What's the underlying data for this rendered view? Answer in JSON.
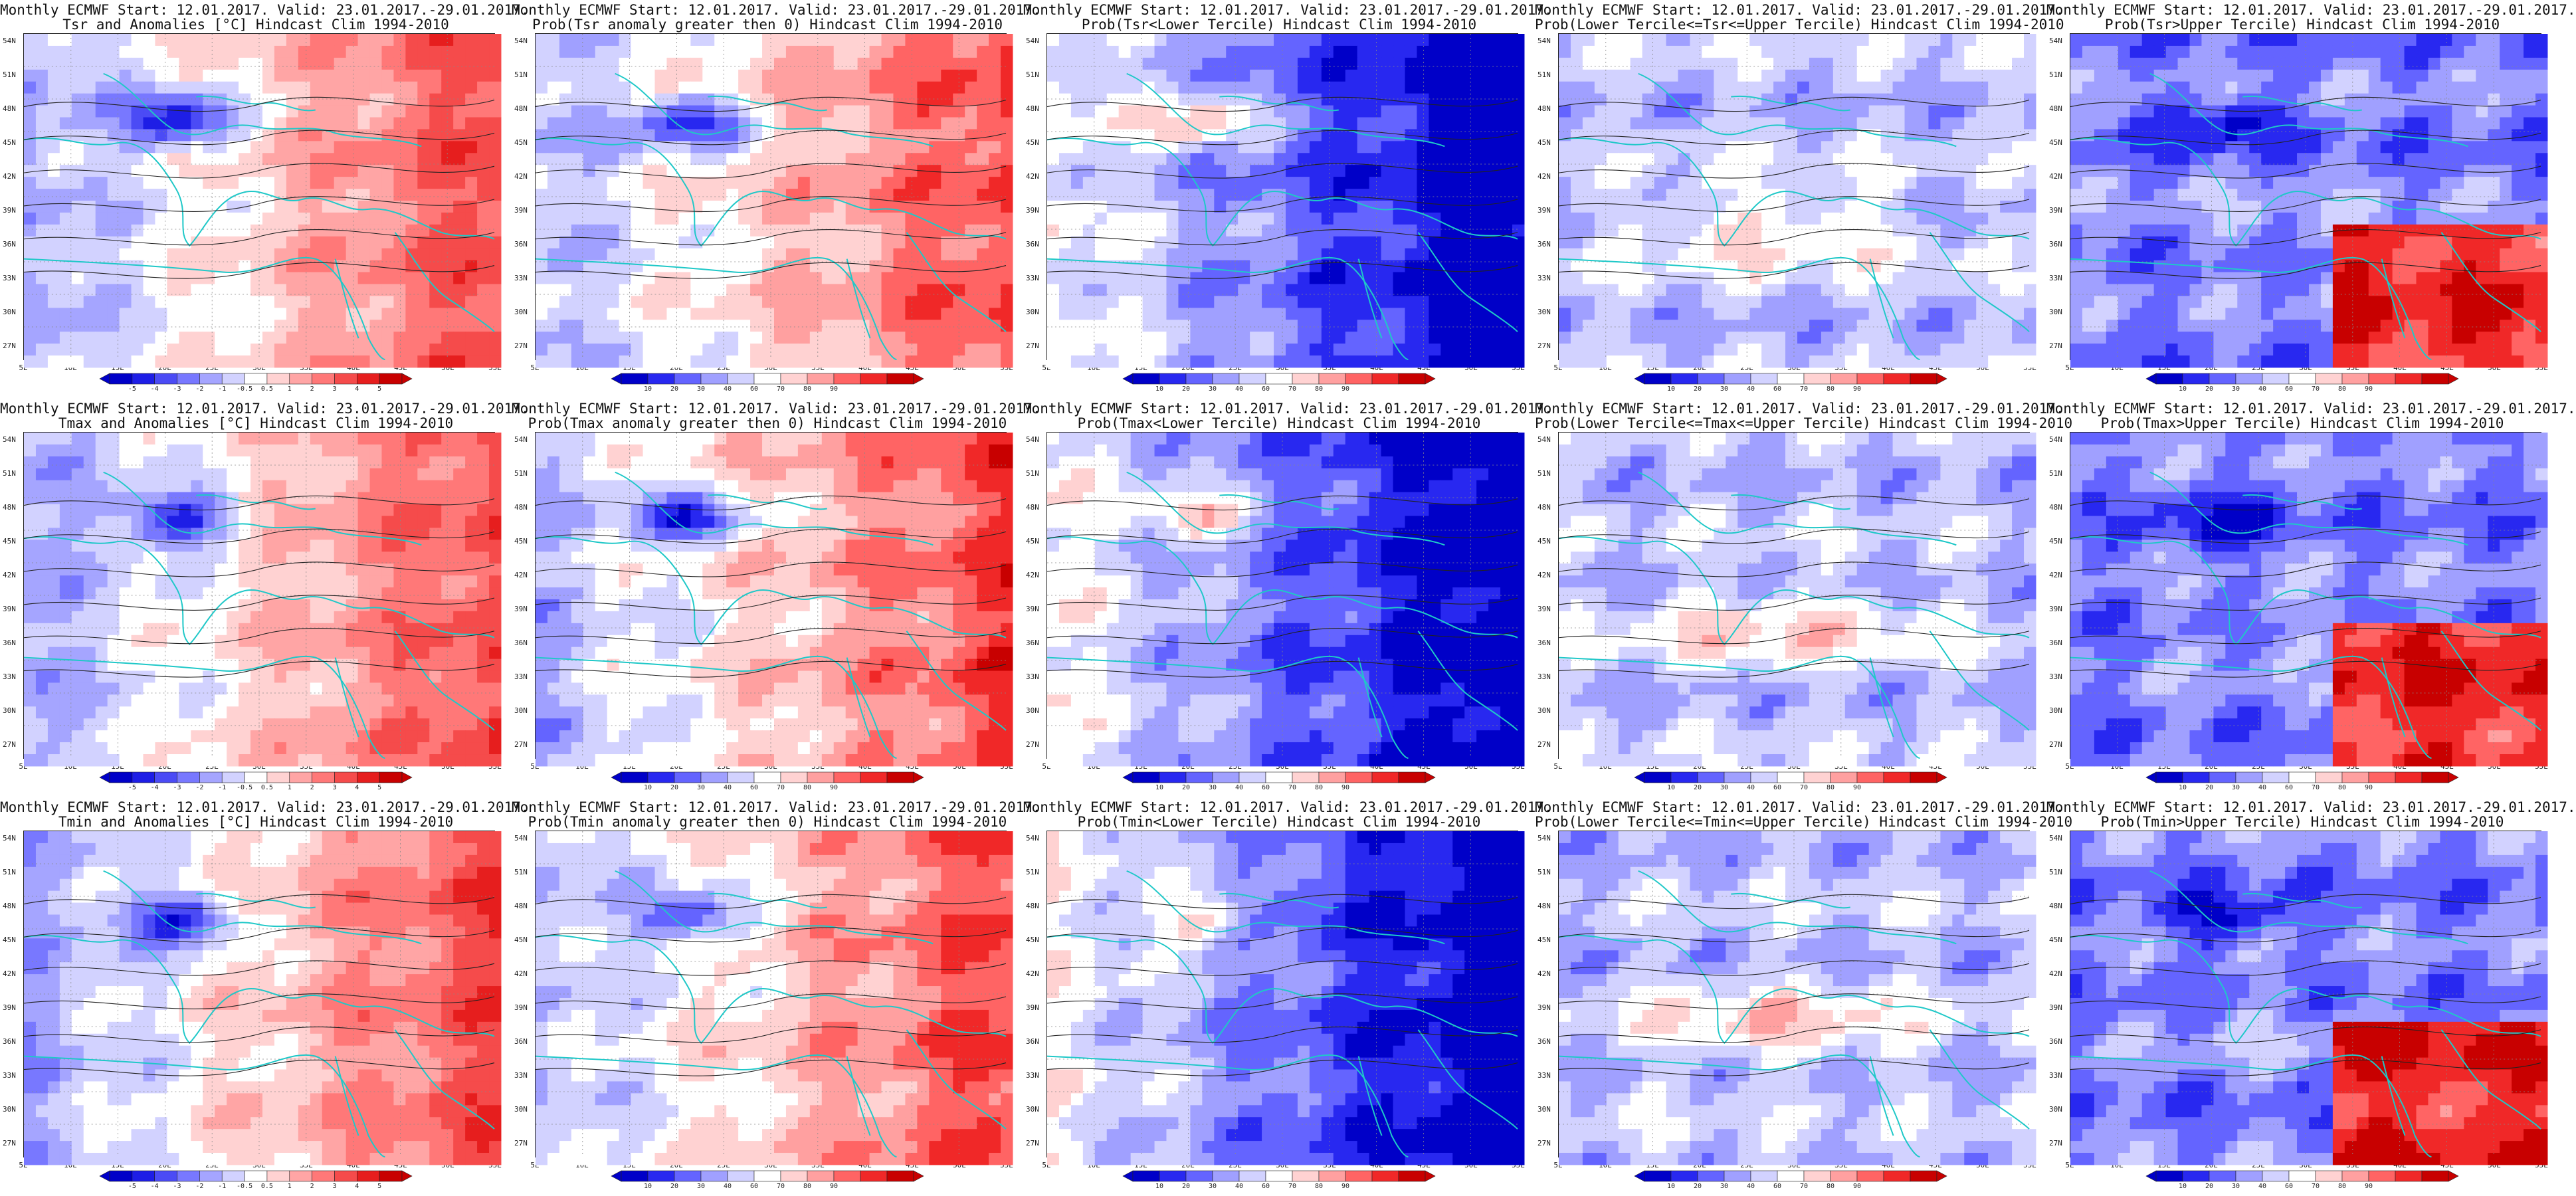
{
  "lat_labels": [
    "54N",
    "51N",
    "48N",
    "45N",
    "42N",
    "39N",
    "36N",
    "33N",
    "30N",
    "27N"
  ],
  "lon_labels": [
    "5E",
    "10E",
    "15E",
    "20E",
    "25E",
    "30E",
    "35E",
    "40E",
    "45E",
    "50E",
    "55E"
  ],
  "colorbars": {
    "anomaly": {
      "ticks": [
        "-5",
        "-4",
        "-3",
        "-2",
        "-1",
        "-0.5",
        "0.5",
        "1",
        "2",
        "3",
        "4",
        "5"
      ],
      "colors": [
        "#0000c8",
        "#1e1ee6",
        "#4b4bf5",
        "#7878ff",
        "#a5a5ff",
        "#d2d2ff",
        "#ffffff",
        "#ffd2d2",
        "#ffa5a5",
        "#ff7878",
        "#f54b4b",
        "#e61e1e",
        "#c80000"
      ]
    },
    "probability": {
      "ticks": [
        "10",
        "20",
        "30",
        "40",
        "60",
        "70",
        "80",
        "90"
      ],
      "colors": [
        "#0000c8",
        "#2828f0",
        "#6464ff",
        "#a0a0ff",
        "#d2d2ff",
        "#ffffff",
        "#ffd2d2",
        "#ffa0a0",
        "#ff6464",
        "#f02828",
        "#c80000"
      ]
    }
  },
  "panels": [
    {
      "title1": "Monthly ECMWF Start: 12.01.2017. Valid: 23.01.2017.-29.01.2017.",
      "title2": "Tsr and Anomalies [°C] Hindcast Clim 1994-2010",
      "scheme": "anom",
      "colorbar": "anomaly"
    },
    {
      "title1": "Monthly ECMWF Start: 12.01.2017. Valid: 23.01.2017.-29.01.2017.",
      "title2": "Prob(Tsr anomaly greater then 0) Hindcast Clim 1994-2010",
      "scheme": "gt0",
      "colorbar": "probability"
    },
    {
      "title1": "Monthly ECMWF Start: 12.01.2017. Valid: 23.01.2017.-29.01.2017.",
      "title2": "Prob(Tsr<Lower Tercile) Hindcast Clim 1994-2010",
      "scheme": "lower",
      "colorbar": "probability"
    },
    {
      "title1": "Monthly ECMWF Start: 12.01.2017. Valid: 23.01.2017.-29.01.2017.",
      "title2": "Prob(Lower Tercile<=Tsr<=Upper Tercile) Hindcast Clim 1994-2010",
      "scheme": "middle",
      "colorbar": "probability"
    },
    {
      "title1": "Monthly ECMWF Start: 12.01.2017. Valid: 23.01.2017.-29.01.2017.",
      "title2": "Prob(Tsr>Upper Tercile) Hindcast Clim 1994-2010",
      "scheme": "upper",
      "colorbar": "probability"
    },
    {
      "title1": "Monthly ECMWF Start: 12.01.2017. Valid: 23.01.2017.-29.01.2017.",
      "title2": "Tmax and Anomalies [°C] Hindcast Clim 1994-2010",
      "scheme": "anom",
      "colorbar": "anomaly"
    },
    {
      "title1": "Monthly ECMWF Start: 12.01.2017. Valid: 23.01.2017.-29.01.2017.",
      "title2": "Prob(Tmax anomaly greater then 0) Hindcast Clim 1994-2010",
      "scheme": "gt0",
      "colorbar": "probability"
    },
    {
      "title1": "Monthly ECMWF Start: 12.01.2017. Valid: 23.01.2017.-29.01.2017.",
      "title2": "Prob(Tmax<Lower Tercile) Hindcast Clim 1994-2010",
      "scheme": "lower",
      "colorbar": "probability"
    },
    {
      "title1": "Monthly ECMWF Start: 12.01.2017. Valid: 23.01.2017.-29.01.2017.",
      "title2": "Prob(Lower Tercile<=Tmax<=Upper Tercile) Hindcast Clim 1994-2010",
      "scheme": "middle",
      "colorbar": "probability"
    },
    {
      "title1": "Monthly ECMWF Start: 12.01.2017. Valid: 23.01.2017.-29.01.2017.",
      "title2": "Prob(Tmax>Upper Tercile) Hindcast Clim 1994-2010",
      "scheme": "upper",
      "colorbar": "probability"
    },
    {
      "title1": "Monthly ECMWF Start: 12.01.2017. Valid: 23.01.2017.-29.01.2017.",
      "title2": "Tmin and Anomalies [°C] Hindcast Clim 1994-2010",
      "scheme": "anom",
      "colorbar": "anomaly"
    },
    {
      "title1": "Monthly ECMWF Start: 12.01.2017. Valid: 23.01.2017.-29.01.2017.",
      "title2": "Prob(Tmin anomaly greater then 0) Hindcast Clim 1994-2010",
      "scheme": "gt0",
      "colorbar": "probability"
    },
    {
      "title1": "Monthly ECMWF Start: 12.01.2017. Valid: 23.01.2017.-29.01.2017.",
      "title2": "Prob(Tmin<Lower Tercile) Hindcast Clim 1994-2010",
      "scheme": "lower",
      "colorbar": "probability"
    },
    {
      "title1": "Monthly ECMWF Start: 12.01.2017. Valid: 23.01.2017.-29.01.2017.",
      "title2": "Prob(Lower Tercile<=Tmin<=Upper Tercile) Hindcast Clim 1994-2010",
      "scheme": "middle",
      "colorbar": "probability"
    },
    {
      "title1": "Monthly ECMWF Start: 12.01.2017. Valid: 23.01.2017.-29.01.2017.",
      "title2": "Prob(Tmin>Upper Tercile) Hindcast Clim 1994-2010",
      "scheme": "upper",
      "colorbar": "probability"
    }
  ]
}
